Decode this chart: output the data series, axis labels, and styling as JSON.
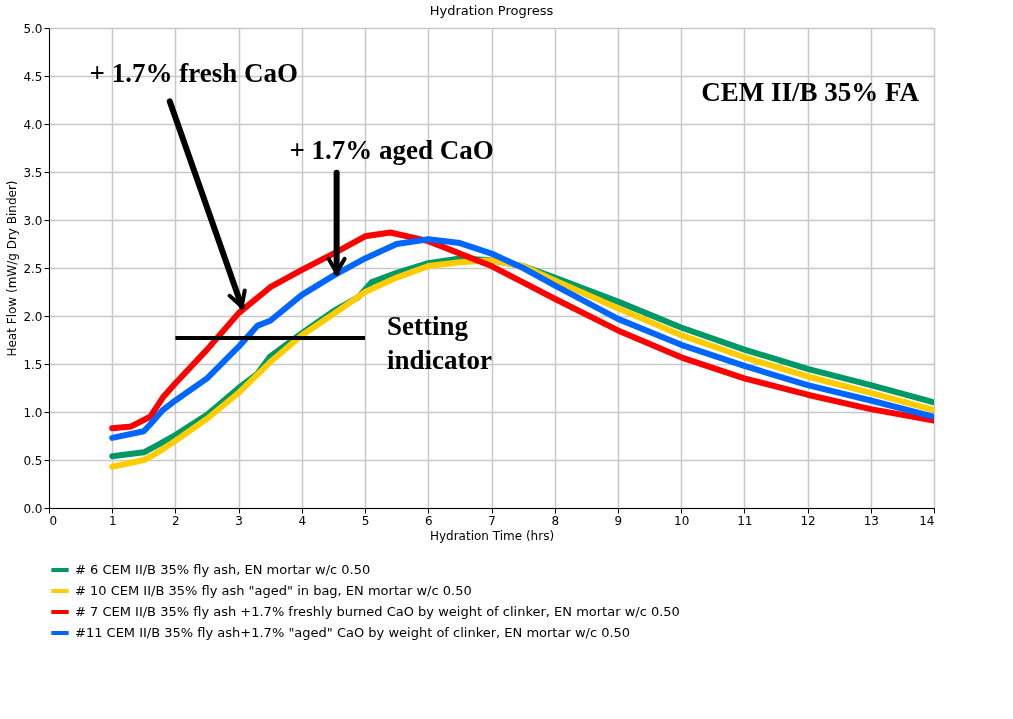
{
  "chart_data": {
    "type": "line",
    "title": "Hydration Progress",
    "xlabel": "Hydration Time (hrs)",
    "ylabel": "Heat Flow (mW/g Dry Binder)",
    "xlim": [
      0,
      14
    ],
    "xticks": [
      0,
      1,
      2,
      3,
      4,
      5,
      6,
      7,
      8,
      9,
      10,
      11,
      12,
      13,
      14
    ],
    "ylim": [
      0,
      5
    ],
    "yticks": [
      {
        "value": 0,
        "label": "0.0"
      },
      {
        "value": 0.5,
        "label": "0.5"
      },
      {
        "value": 1,
        "label": "1.0"
      },
      {
        "value": 1.5,
        "label": "1.5"
      },
      {
        "value": 2,
        "label": "2.0"
      },
      {
        "value": 2.5,
        "label": "2.5"
      },
      {
        "value": 3,
        "label": "3.0"
      },
      {
        "value": 3.5,
        "label": "3.5"
      },
      {
        "value": 4,
        "label": "4.0"
      },
      {
        "value": 4.5,
        "label": "4.5"
      },
      {
        "value": 5,
        "label": "5.0"
      }
    ],
    "grid": true,
    "legend": "bottom",
    "series": [
      {
        "name": "# 6 CEM II/B 35% fly ash, EN mortar w/c 0.50",
        "color": "#009966",
        "x": [
          1,
          1.5,
          1.7,
          2,
          2.5,
          3,
          3.3,
          3.5,
          4,
          4.5,
          4.9,
          5.1,
          5.5,
          6,
          6.5,
          7,
          7.5,
          8,
          9,
          10,
          11,
          12,
          13,
          14
        ],
        "values": [
          0.54,
          0.58,
          0.65,
          0.76,
          0.97,
          1.25,
          1.4,
          1.58,
          1.82,
          2.05,
          2.2,
          2.35,
          2.45,
          2.55,
          2.6,
          2.58,
          2.52,
          2.4,
          2.15,
          1.88,
          1.65,
          1.45,
          1.28,
          1.1
        ]
      },
      {
        "name": "# 10 CEM II/B 35% fly ash \"aged\" in bag, EN mortar w/c 0.50",
        "color": "#ffcc00",
        "x": [
          1,
          1.5,
          1.7,
          2,
          2.5,
          3,
          3.5,
          4,
          4.5,
          5,
          5.5,
          6,
          6.5,
          7,
          7.5,
          8,
          9,
          10,
          11,
          12,
          13,
          14
        ],
        "values": [
          0.43,
          0.5,
          0.57,
          0.7,
          0.93,
          1.2,
          1.52,
          1.8,
          2.02,
          2.25,
          2.4,
          2.52,
          2.56,
          2.58,
          2.52,
          2.37,
          2.08,
          1.8,
          1.57,
          1.37,
          1.2,
          1.02
        ]
      },
      {
        "name": "# 7 CEM II/B 35% fly ash +1.7% freshly burned CaO by weight of clinker, EN mortar w/c 0.50",
        "color": "#ff0000",
        "x": [
          1,
          1.3,
          1.6,
          1.8,
          2,
          2.5,
          3,
          3.5,
          4,
          4.5,
          5,
          5.4,
          6,
          6.5,
          7,
          7.5,
          8,
          9,
          10,
          11,
          12,
          13,
          14
        ],
        "values": [
          0.83,
          0.85,
          0.95,
          1.15,
          1.3,
          1.65,
          2.03,
          2.3,
          2.48,
          2.65,
          2.83,
          2.87,
          2.78,
          2.65,
          2.52,
          2.35,
          2.18,
          1.85,
          1.57,
          1.35,
          1.18,
          1.03,
          0.91
        ]
      },
      {
        "name": "#11 CEM II/B 35% fly ash+1.7% \"aged\" CaO by weight of clinker, EN mortar w/c 0.50",
        "color": "#0066ff",
        "x": [
          1,
          1.5,
          1.6,
          1.8,
          2,
          2.5,
          3,
          3.3,
          3.5,
          4,
          4.5,
          5,
          5.5,
          6,
          6.5,
          7,
          7.5,
          8,
          9,
          10,
          11,
          12,
          13,
          14
        ],
        "values": [
          0.73,
          0.8,
          0.87,
          1.02,
          1.12,
          1.35,
          1.68,
          1.9,
          1.95,
          2.22,
          2.42,
          2.6,
          2.75,
          2.8,
          2.76,
          2.65,
          2.5,
          2.32,
          1.97,
          1.7,
          1.48,
          1.28,
          1.12,
          0.95
        ]
      },
      {
        "color": "#000000",
        "x": [
          2,
          5
        ],
        "values": [
          1.77,
          1.77
        ]
      }
    ],
    "annotations": [
      {
        "text": "+ 1.7% fresh CaO",
        "x": 3.05,
        "y": 2.1
      },
      {
        "text": "+ 1.7% aged CaO",
        "x": 4.55,
        "y": 2.45
      },
      {
        "text": "Setting indicator",
        "x": 5,
        "y": 1.77
      },
      "CEM II/B 35% FA"
    ]
  }
}
